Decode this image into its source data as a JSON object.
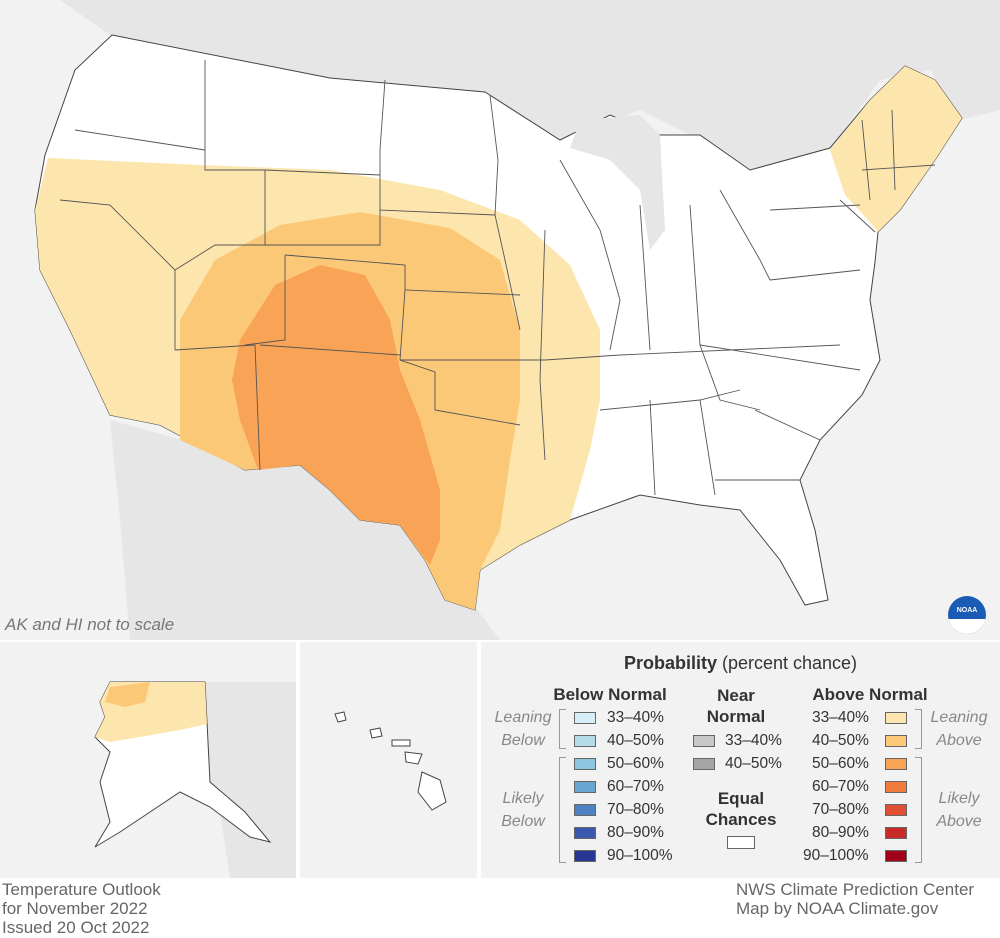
{
  "map_note": "AK and HI not to scale",
  "legend": {
    "title_bold": "Probability",
    "title_rest": " (percent chance)",
    "below": {
      "heading": "Below Normal",
      "leaning_label": [
        "Leaning",
        "Below"
      ],
      "likely_label": [
        "Likely",
        "Below"
      ],
      "items": [
        {
          "label": "33–40%",
          "color": "#d7eef6"
        },
        {
          "label": "40–50%",
          "color": "#b5dbeb"
        },
        {
          "label": "50–60%",
          "color": "#8ec5df"
        },
        {
          "label": "60–70%",
          "color": "#6aa6d1"
        },
        {
          "label": "70–80%",
          "color": "#4f82c2"
        },
        {
          "label": "80–90%",
          "color": "#3a58ae"
        },
        {
          "label": "90–100%",
          "color": "#283593"
        }
      ]
    },
    "near": {
      "heading": [
        "Near",
        "Normal"
      ],
      "items": [
        {
          "label": "33–40%",
          "color": "#c8c8c8"
        },
        {
          "label": "40–50%",
          "color": "#a4a4a4"
        }
      ],
      "equal_heading": [
        "Equal",
        "Chances"
      ],
      "equal_color": "#ffffff"
    },
    "above": {
      "heading": "Above Normal",
      "leaning_label": [
        "Leaning",
        "Above"
      ],
      "likely_label": [
        "Likely",
        "Above"
      ],
      "items": [
        {
          "label": "33–40%",
          "color": "#fde6ad"
        },
        {
          "label": "40–50%",
          "color": "#fbc878"
        },
        {
          "label": "50–60%",
          "color": "#f8a355"
        },
        {
          "label": "60–70%",
          "color": "#f07b3c"
        },
        {
          "label": "70–80%",
          "color": "#e14f33"
        },
        {
          "label": "80–90%",
          "color": "#c82a2a"
        },
        {
          "label": "90–100%",
          "color": "#a3001d"
        }
      ]
    }
  },
  "footer_left": [
    "Temperature Outlook",
    "for November 2022",
    "Issued 20 Oct 2022"
  ],
  "footer_right": [
    "NWS Climate Prediction Center",
    "Map by NOAA Climate.gov"
  ],
  "logo": {
    "text": "NOAA",
    "color": "#1a5bb5"
  },
  "map_colors": {
    "background": "#f2f2f2",
    "land_other": "#e6e6e6",
    "conus_equal_chances": "#ffffff",
    "leaning_above_33_40": "#fde6ad",
    "leaning_above_40_50": "#fbc878",
    "likely_above_50_60": "#f8a355",
    "border": "#444444"
  }
}
